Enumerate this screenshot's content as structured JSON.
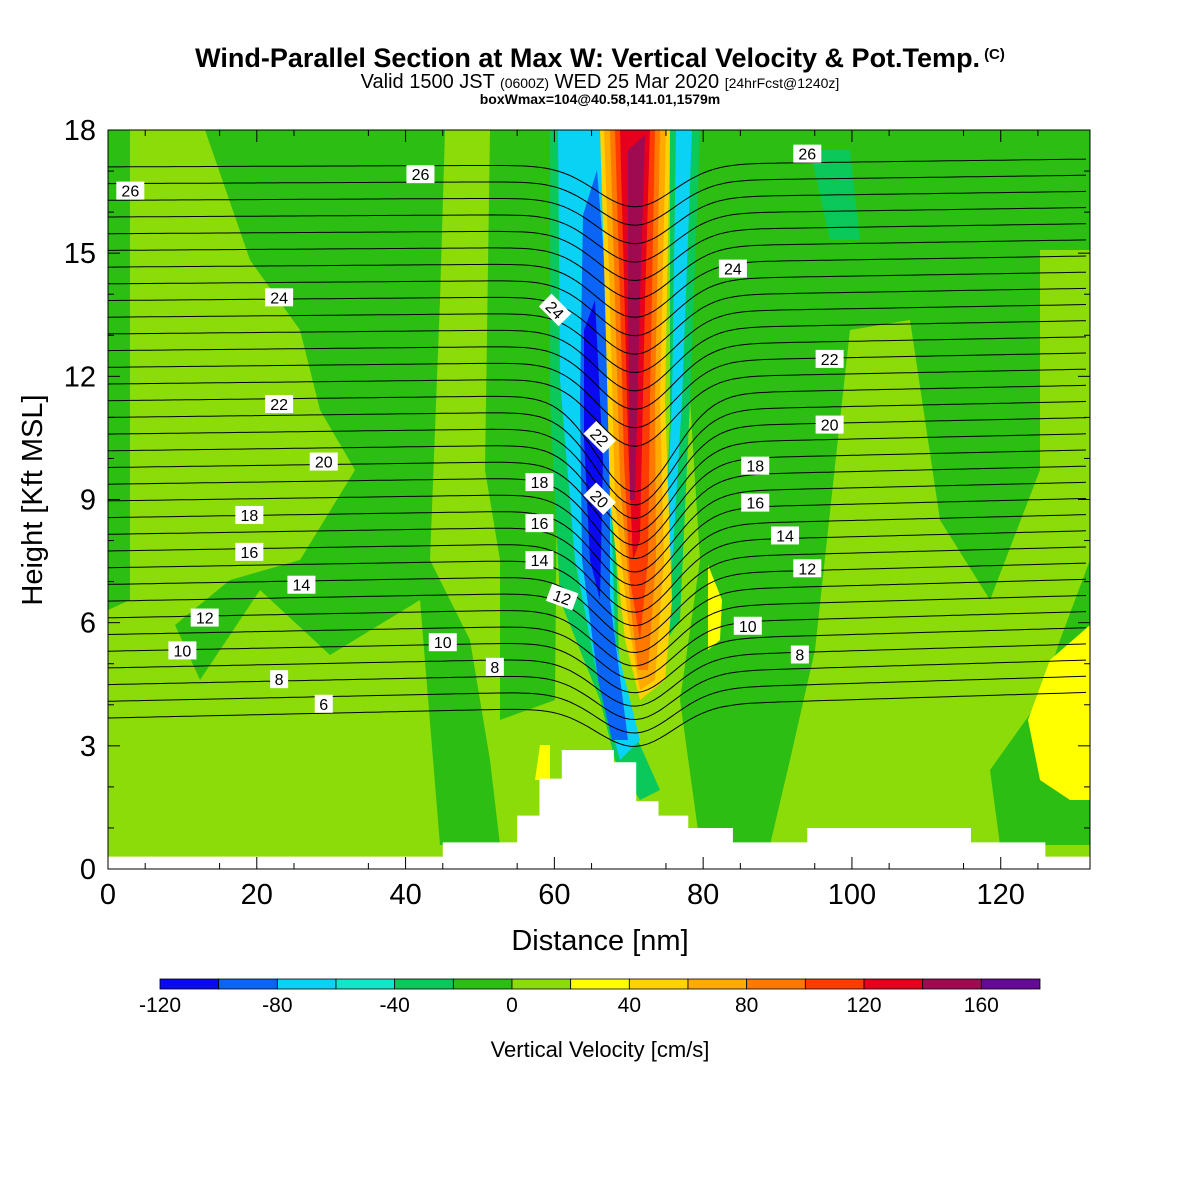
{
  "title": {
    "main": "Wind-Parallel Section at Max W: Vertical Velocity & Pot.Temp.",
    "copyright": "(C)",
    "valid_prefix": "Valid 1500 JST",
    "valid_utc": "(0600Z)",
    "valid_date": "WED 25 Mar 2020",
    "forecast": "[24hrFcst@1240z]",
    "box": "boxWmax=104@40.58,141.01,1579m"
  },
  "colors": {
    "c_m120": "#0a0af0",
    "c_m100": "#0a64f5",
    "c_m80": "#0ad2f5",
    "c_m60": "#12e6c8",
    "c_m40": "#0ac85a",
    "c_m20": "#2dbe14",
    "c_0": "#8cdc0a",
    "c_20": "#ffff00",
    "c_40": "#ffd200",
    "c_60": "#ffaa00",
    "c_80": "#ff7800",
    "c_100": "#ff3c00",
    "c_120": "#e6001e",
    "c_140": "#a00a50",
    "c_160": "#640a96"
  },
  "chart_data": {
    "type": "heatmap",
    "xlabel": "Distance [nm]",
    "ylabel": "Height [Kft MSL]",
    "xlim": [
      0,
      132
    ],
    "ylim": [
      0,
      18
    ],
    "xticks": [
      "0",
      "20",
      "40",
      "60",
      "80",
      "100",
      "120"
    ],
    "yticks": [
      "0",
      "3",
      "6",
      "9",
      "12",
      "15",
      "18"
    ],
    "colorbar": {
      "title": "Vertical Velocity [cm/s]",
      "levels": [
        -120,
        -100,
        -80,
        -60,
        -40,
        -20,
        0,
        20,
        40,
        60,
        80,
        100,
        120,
        140,
        160,
        180
      ],
      "labels": [
        "-120",
        "-80",
        "-40",
        "0",
        "40",
        "80",
        "120",
        "160"
      ],
      "label_values": [
        -120,
        -80,
        -40,
        0,
        40,
        80,
        120,
        160
      ]
    },
    "terrain": [
      [
        0,
        0.3
      ],
      [
        45,
        0.3
      ],
      [
        45,
        0.65
      ],
      [
        55,
        0.65
      ],
      [
        55,
        1.3
      ],
      [
        58,
        1.3
      ],
      [
        58,
        2.2
      ],
      [
        61,
        2.2
      ],
      [
        61,
        2.9
      ],
      [
        68,
        2.9
      ],
      [
        68,
        2.6
      ],
      [
        71,
        2.6
      ],
      [
        71,
        1.65
      ],
      [
        74,
        1.65
      ],
      [
        74,
        1.3
      ],
      [
        78,
        1.3
      ],
      [
        78,
        1.0
      ],
      [
        84,
        1.0
      ],
      [
        84,
        0.65
      ],
      [
        94,
        0.65
      ],
      [
        94,
        1.0
      ],
      [
        116,
        1.0
      ],
      [
        116,
        0.65
      ],
      [
        126,
        0.65
      ],
      [
        126,
        0.3
      ],
      [
        132,
        0.3
      ]
    ],
    "potential_temperature_contours": [
      {
        "value": "26",
        "x": 3,
        "y": 16.5,
        "angle": 0
      },
      {
        "value": "26",
        "x": 42,
        "y": 16.9,
        "angle": 0
      },
      {
        "value": "26",
        "x": 94,
        "y": 17.4,
        "angle": 0
      },
      {
        "value": "24",
        "x": 23,
        "y": 13.9,
        "angle": 0
      },
      {
        "value": "24",
        "x": 60,
        "y": 13.6,
        "angle": 45
      },
      {
        "value": "24",
        "x": 84,
        "y": 14.6,
        "angle": 0
      },
      {
        "value": "22",
        "x": 23,
        "y": 11.3,
        "angle": 0
      },
      {
        "value": "22",
        "x": 66,
        "y": 10.5,
        "angle": 45
      },
      {
        "value": "22",
        "x": 97,
        "y": 12.4,
        "angle": 0
      },
      {
        "value": "20",
        "x": 29,
        "y": 9.9,
        "angle": 0
      },
      {
        "value": "20",
        "x": 66,
        "y": 9.0,
        "angle": 45
      },
      {
        "value": "20",
        "x": 97,
        "y": 10.8,
        "angle": 0
      },
      {
        "value": "18",
        "x": 19,
        "y": 8.6,
        "angle": 0
      },
      {
        "value": "18",
        "x": 58,
        "y": 9.4,
        "angle": 0
      },
      {
        "value": "18",
        "x": 87,
        "y": 9.8,
        "angle": 0
      },
      {
        "value": "16",
        "x": 19,
        "y": 7.7,
        "angle": 0
      },
      {
        "value": "16",
        "x": 58,
        "y": 8.4,
        "angle": 0
      },
      {
        "value": "16",
        "x": 87,
        "y": 8.9,
        "angle": 0
      },
      {
        "value": "14",
        "x": 26,
        "y": 6.9,
        "angle": 0
      },
      {
        "value": "14",
        "x": 58,
        "y": 7.5,
        "angle": 0
      },
      {
        "value": "14",
        "x": 91,
        "y": 8.1,
        "angle": 0
      },
      {
        "value": "12",
        "x": 13,
        "y": 6.1,
        "angle": 0
      },
      {
        "value": "12",
        "x": 61,
        "y": 6.6,
        "angle": 20
      },
      {
        "value": "12",
        "x": 94,
        "y": 7.3,
        "angle": 0
      },
      {
        "value": "10",
        "x": 10,
        "y": 5.3,
        "angle": 0
      },
      {
        "value": "10",
        "x": 45,
        "y": 5.5,
        "angle": 0
      },
      {
        "value": "10",
        "x": 86,
        "y": 5.9,
        "angle": 0
      },
      {
        "value": "8",
        "x": 23,
        "y": 4.6,
        "angle": 0
      },
      {
        "value": "8",
        "x": 52,
        "y": 4.9,
        "angle": 0
      },
      {
        "value": "8",
        "x": 93,
        "y": 5.2,
        "angle": 0
      },
      {
        "value": "6",
        "x": 29,
        "y": 4.0,
        "angle": 0
      }
    ]
  }
}
